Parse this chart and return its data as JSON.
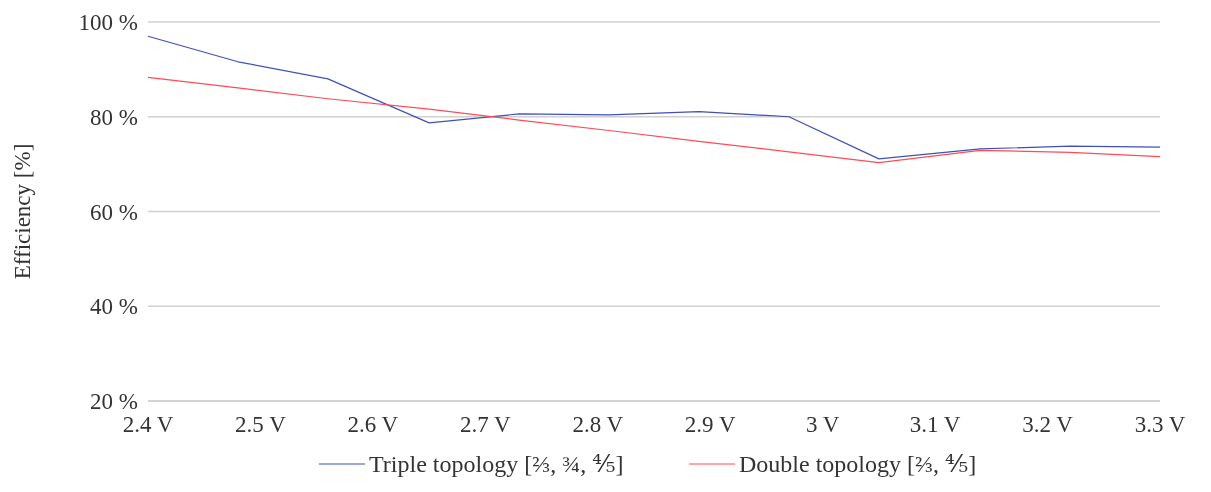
{
  "chart_data": {
    "type": "line",
    "ylabel": "Efficiency [%]",
    "x": [
      2.4,
      2.48,
      2.56,
      2.65,
      2.73,
      2.81,
      2.89,
      2.97,
      3.05,
      3.14,
      3.22,
      3.3
    ],
    "series": [
      {
        "name": "Triple topology [⅔, ¾, ⅘]",
        "color": "#3f51b5",
        "values": [
          97.0,
          91.6,
          88.0,
          78.7,
          80.6,
          80.4,
          81.1,
          80.0,
          71.1,
          73.2,
          73.8,
          73.6
        ]
      },
      {
        "name": "Double topology [⅔, ⅘]",
        "color": "#ff4b55",
        "values": [
          88.3,
          86.1,
          83.8,
          81.6,
          79.3,
          77.1,
          74.8,
          72.6,
          70.3,
          72.9,
          72.5,
          71.6
        ]
      }
    ],
    "xlim": [
      2.4,
      3.3
    ],
    "xticks": [
      {
        "value": 2.4,
        "label": "2.4 V"
      },
      {
        "value": 2.5,
        "label": "2.5 V"
      },
      {
        "value": 2.6,
        "label": "2.6 V"
      },
      {
        "value": 2.7,
        "label": "2.7 V"
      },
      {
        "value": 2.8,
        "label": "2.8 V"
      },
      {
        "value": 2.9,
        "label": "2.9 V"
      },
      {
        "value": 3,
        "label": "3 V"
      },
      {
        "value": 3.1,
        "label": "3.1 V"
      },
      {
        "value": 3.2,
        "label": "3.2 V"
      },
      {
        "value": 3.3,
        "label": "3.3 V"
      }
    ],
    "ylim": [
      20,
      100
    ],
    "yticks": [
      {
        "value": 20,
        "label": "20 %"
      },
      {
        "value": 40,
        "label": "40 %"
      },
      {
        "value": 60,
        "label": "60 %"
      },
      {
        "value": 80,
        "label": "80 %"
      },
      {
        "value": 100,
        "label": "100 %"
      }
    ],
    "grid": "y",
    "legend": "bottom",
    "marker": "none",
    "line_style": "solid"
  }
}
